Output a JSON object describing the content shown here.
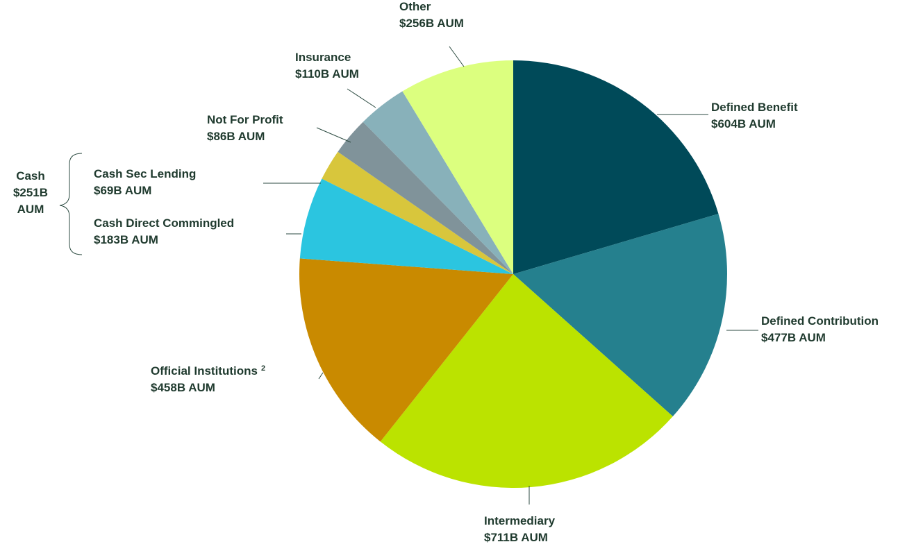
{
  "chart_data": {
    "type": "pie",
    "slices": [
      {
        "name": "Defined Benefit",
        "value_label": "$604B AUM",
        "value": 604,
        "color": "#004a59"
      },
      {
        "name": "Defined Contribution",
        "value_label": "$477B AUM",
        "value": 477,
        "color": "#25808e"
      },
      {
        "name": "Intermediary",
        "value_label": "$711B AUM",
        "value": 711,
        "color": "#bbe300"
      },
      {
        "name": "Official Institutions",
        "footnote": "2",
        "value_label": "$458B AUM",
        "value": 458,
        "color": "#c98a00"
      },
      {
        "name": "Cash Direct Commingled",
        "value_label": "$183B AUM",
        "value": 183,
        "color": "#2bc5e0"
      },
      {
        "name": "Cash Sec Lending",
        "value_label": "$69B AUM",
        "value": 69,
        "color": "#d8c63c"
      },
      {
        "name": "Not For Profit",
        "value_label": "$86B AUM",
        "value": 86,
        "color": "#80939a"
      },
      {
        "name": "Insurance",
        "value_label": "$110B AUM",
        "value": 110,
        "color": "#88b1ba"
      },
      {
        "name": "Other",
        "value_label": "$256B AUM",
        "value": 256,
        "color": "#dcff7f"
      }
    ],
    "group": {
      "name": "Cash",
      "lines": [
        "Cash",
        "$251B",
        "AUM"
      ],
      "members": [
        "Cash Sec Lending",
        "Cash Direct Commingled"
      ]
    }
  }
}
